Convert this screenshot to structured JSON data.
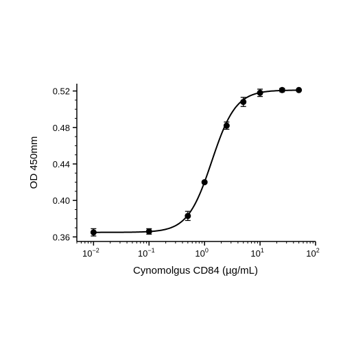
{
  "chart_data": {
    "type": "scatter",
    "xlabel": "Cynomolgus CD84 (µg/mL)",
    "ylabel": "OD 450mm",
    "x_scale": "log",
    "xlim": [
      0.005,
      100
    ],
    "ylim": [
      0.355,
      0.528
    ],
    "x_ticks": [
      {
        "value": 0.01,
        "base": "10",
        "exp": "−2"
      },
      {
        "value": 0.1,
        "base": "10",
        "exp": "−1"
      },
      {
        "value": 1,
        "base": "10",
        "exp": "0"
      },
      {
        "value": 10,
        "base": "10",
        "exp": "1"
      },
      {
        "value": 100,
        "base": "10",
        "exp": "2"
      }
    ],
    "y_ticks": [
      {
        "value": 0.36,
        "label": "0.36"
      },
      {
        "value": 0.4,
        "label": "0.40"
      },
      {
        "value": 0.44,
        "label": "0.44"
      },
      {
        "value": 0.48,
        "label": "0.48"
      },
      {
        "value": 0.52,
        "label": "0.52"
      }
    ],
    "series": [
      {
        "points": [
          {
            "x": 0.01,
            "y": 0.365,
            "err": 0.004
          },
          {
            "x": 0.1,
            "y": 0.366,
            "err": 0.003
          },
          {
            "x": 0.5,
            "y": 0.383,
            "err": 0.005
          },
          {
            "x": 1,
            "y": 0.42,
            "err": 0.0
          },
          {
            "x": 2.5,
            "y": 0.482,
            "err": 0.004
          },
          {
            "x": 5,
            "y": 0.508,
            "err": 0.005
          },
          {
            "x": 10,
            "y": 0.518,
            "err": 0.004
          },
          {
            "x": 25,
            "y": 0.521,
            "err": 0.002
          },
          {
            "x": 50,
            "y": 0.521,
            "err": 0.0
          }
        ],
        "fit": {
          "bottom": 0.365,
          "top": 0.521,
          "ec50": 1.35,
          "hill": 2.0
        }
      }
    ],
    "colors": {
      "marker": "#000000",
      "line": "#000000",
      "axis": "#000000"
    },
    "grid": false,
    "legend": "none"
  }
}
